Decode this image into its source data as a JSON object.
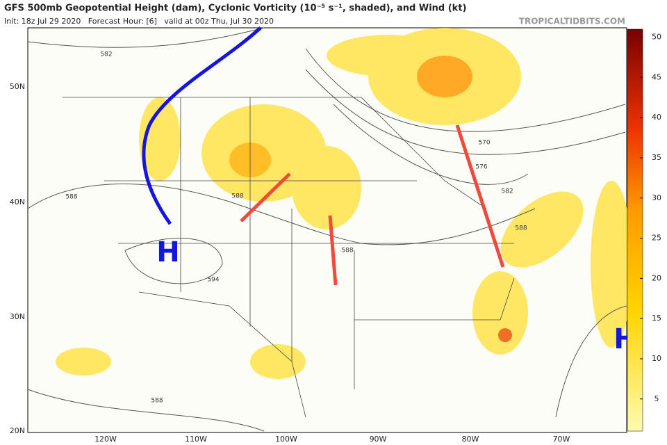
{
  "header": {
    "title": "GFS 500mb Geopotential Height (dam), Cyclonic Vorticity (10⁻⁵ s⁻¹, shaded), and Wind (kt)",
    "subtitle": "Init: 18z Jul 29 2020   Forecast Hour: [6]   valid at 00z Thu, Jul 30 2020",
    "credit": "TROPICALTIDBITS.COM"
  },
  "map": {
    "lat_labels": [
      "50N",
      "40N",
      "30N",
      "20N"
    ],
    "lon_labels": [
      "120W",
      "110W",
      "100W",
      "90W",
      "80W",
      "70W"
    ],
    "contour_labels": [
      "582",
      "588",
      "588",
      "594",
      "588",
      "570",
      "576",
      "582",
      "588",
      "588"
    ],
    "highs": [
      "H",
      "H"
    ]
  },
  "colorbar": {
    "lim": [
      1,
      51
    ],
    "ticks": [
      5,
      10,
      15,
      20,
      25,
      30,
      35,
      40,
      45,
      50
    ]
  }
}
